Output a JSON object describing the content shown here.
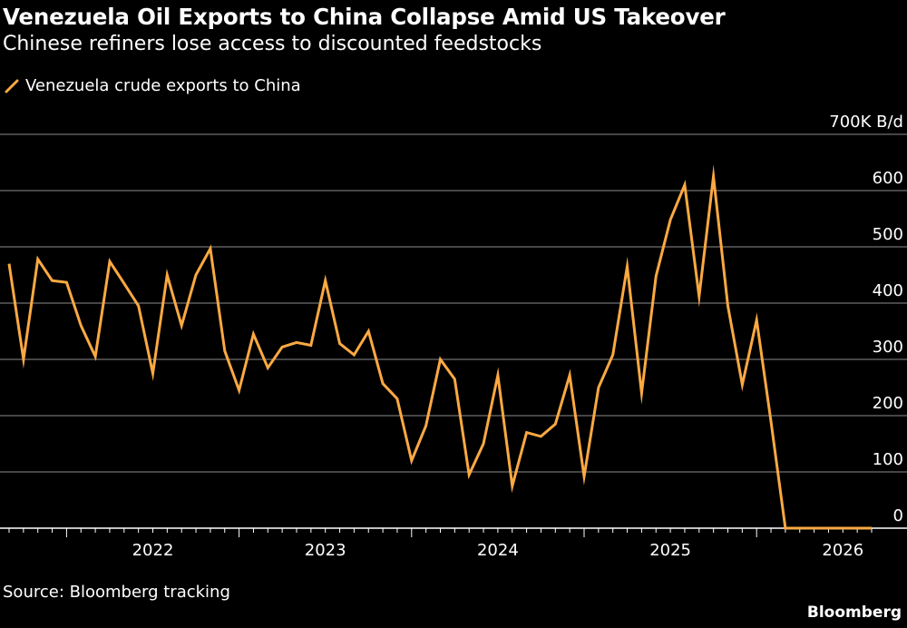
{
  "title": "Venezuela Oil Exports to China Collapse Amid US Takeover",
  "subtitle": "Chinese refiners lose access to discounted feedstocks",
  "legend": {
    "label": "Venezuela crude exports to China",
    "icon": "line-swatch-icon"
  },
  "source": "Source: Bloomberg tracking",
  "brand": "Bloomberg",
  "colors": {
    "background": "#000000",
    "series": "#FBA942",
    "grid": "#8c8c8c",
    "text": "#FFFFFF"
  },
  "chart_data": {
    "type": "line",
    "ylim": [
      0,
      700
    ],
    "yticks": [
      {
        "value": 0,
        "label": "0"
      },
      {
        "value": 100,
        "label": "100"
      },
      {
        "value": 200,
        "label": "200"
      },
      {
        "value": 300,
        "label": "300"
      },
      {
        "value": 400,
        "label": "400"
      },
      {
        "value": 500,
        "label": "500"
      },
      {
        "value": 600,
        "label": "600"
      },
      {
        "value": 700,
        "label": "700K B/d"
      }
    ],
    "xticks": [
      "2022",
      "2023",
      "2024",
      "2025",
      "2026"
    ],
    "x": [
      "2021-09",
      "2021-10",
      "2021-11",
      "2021-12",
      "2022-01",
      "2022-02",
      "2022-03",
      "2022-04",
      "2022-05",
      "2022-06",
      "2022-07",
      "2022-08",
      "2022-09",
      "2022-10",
      "2022-11",
      "2022-12",
      "2023-01",
      "2023-02",
      "2023-03",
      "2023-04",
      "2023-05",
      "2023-06",
      "2023-07",
      "2023-08",
      "2023-09",
      "2023-10",
      "2023-11",
      "2023-12",
      "2024-01",
      "2024-02",
      "2024-03",
      "2024-04",
      "2024-05",
      "2024-06",
      "2024-07",
      "2024-08",
      "2024-09",
      "2024-10",
      "2024-11",
      "2024-12",
      "2025-01",
      "2025-02",
      "2025-03",
      "2025-04",
      "2025-05",
      "2025-06",
      "2025-07",
      "2025-08",
      "2025-09",
      "2025-10",
      "2025-11",
      "2025-12",
      "2026-01",
      "2026-02",
      "2026-03",
      "2026-04",
      "2026-05",
      "2026-06",
      "2026-07",
      "2026-08",
      "2026-09"
    ],
    "series": [
      {
        "name": "Venezuela crude exports to China",
        "values": [
          470,
          300,
          478,
          440,
          437,
          360,
          305,
          474,
          435,
          395,
          275,
          450,
          360,
          450,
          497,
          315,
          245,
          345,
          285,
          322,
          330,
          325,
          440,
          328,
          308,
          350,
          257,
          230,
          120,
          182,
          300,
          265,
          95,
          150,
          272,
          75,
          170,
          163,
          185,
          272,
          92,
          250,
          308,
          465,
          240,
          448,
          548,
          610,
          412,
          625,
          395,
          255,
          370,
          190,
          0,
          0,
          0,
          0,
          0,
          0,
          0
        ]
      }
    ]
  }
}
